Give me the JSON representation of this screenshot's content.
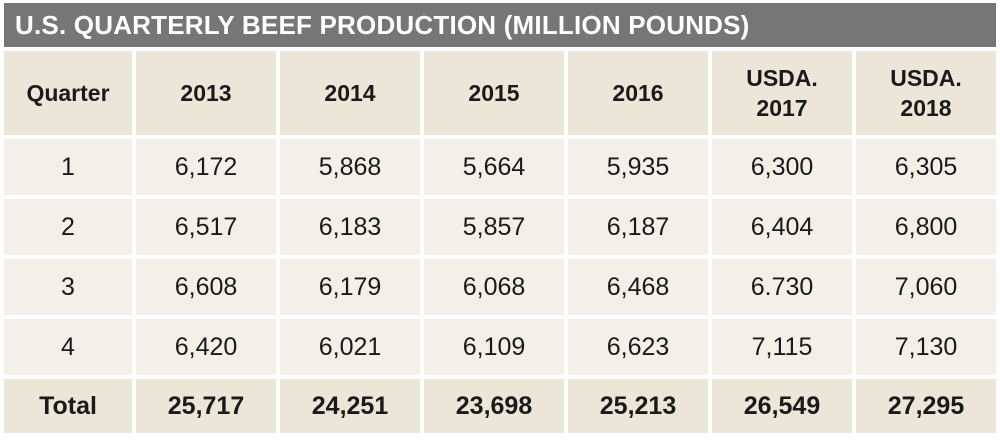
{
  "title": "U.S. QUARTERLY BEEF PRODUCTION (MILLION POUNDS)",
  "headers": [
    "Quarter",
    "2013",
    "2014",
    "2015",
    "2016",
    "USDA.\n2017",
    "USDA.\n2018"
  ],
  "header_lines": [
    [
      "Quarter"
    ],
    [
      "2013"
    ],
    [
      "2014"
    ],
    [
      "2015"
    ],
    [
      "2016"
    ],
    [
      "USDA.",
      "2017"
    ],
    [
      "USDA.",
      "2018"
    ]
  ],
  "rows": [
    [
      "1",
      "6,172",
      "5,868",
      "5,664",
      "5,935",
      "6,300",
      "6,305"
    ],
    [
      "2",
      "6,517",
      "6,183",
      "5,857",
      "6,187",
      "6,404",
      "6,800"
    ],
    [
      "3",
      "6,608",
      "6,179",
      "6,068",
      "6,468",
      "6.730",
      "7,060"
    ],
    [
      "4",
      "6,420",
      "6,021",
      "6,109",
      "6,623",
      "7,115",
      "7,130"
    ]
  ],
  "total": [
    "Total",
    "25,717",
    "24,251",
    "23,698",
    "25,213",
    "26,549",
    "27,295"
  ],
  "colors": {
    "title_bg": "#767676",
    "header_bg": "#ece6d9",
    "cell_bg": "#f3f0e9",
    "text": "#1a1a1a"
  }
}
